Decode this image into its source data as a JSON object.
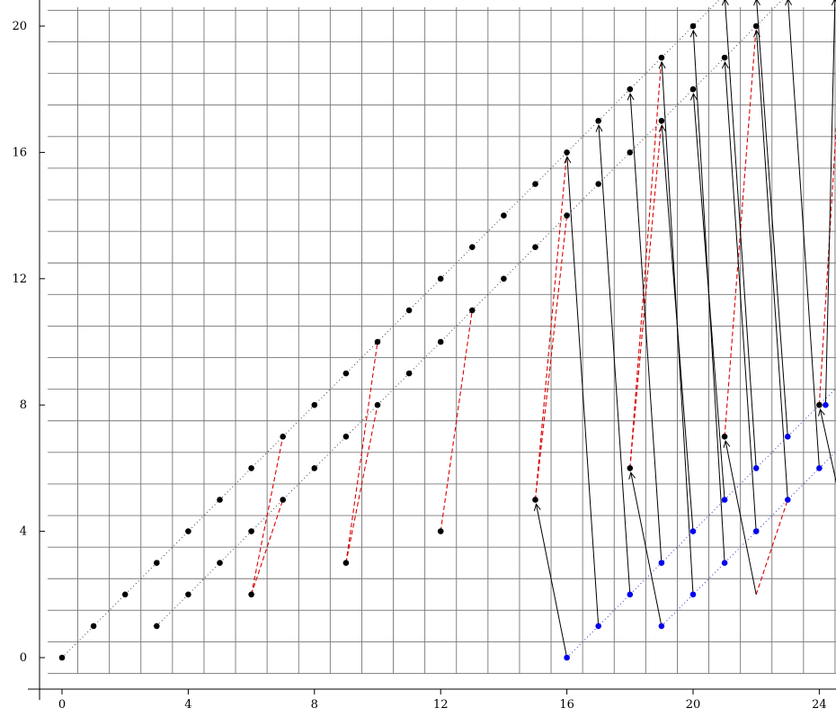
{
  "chart_data": {
    "type": "scatter",
    "title": "",
    "xlabel": "",
    "ylabel": "",
    "xlim": [
      -0.8,
      24.55
    ],
    "ylim": [
      -0.8,
      20.75
    ],
    "grid": true,
    "x_ticks": [
      0,
      4,
      8,
      12,
      16,
      20,
      24
    ],
    "y_ticks": [
      0,
      4,
      8,
      12,
      16,
      20
    ],
    "x_tick_labels": [
      "0",
      "4",
      "8",
      "12",
      "16",
      "20",
      "24"
    ],
    "y_tick_labels": [
      "0",
      "4",
      "8",
      "12",
      "16",
      "20"
    ],
    "colors": {
      "black_points": "#000000",
      "blue_points": "#0000ee",
      "red_dashed": "#dd0000",
      "black_dotted": "#444444",
      "blue_dotted": "#3333cc",
      "grid": "#777777"
    },
    "series": [
      {
        "color": "black",
        "marker": "dot",
        "points": [
          [
            0,
            0
          ],
          [
            1,
            1
          ],
          [
            2,
            2
          ],
          [
            3,
            3
          ],
          [
            4,
            4
          ],
          [
            5,
            5
          ],
          [
            6,
            6
          ],
          [
            7,
            7
          ],
          [
            8,
            8
          ],
          [
            9,
            9
          ],
          [
            10,
            10
          ],
          [
            11,
            11
          ],
          [
            12,
            12
          ],
          [
            13,
            13
          ],
          [
            14,
            14
          ],
          [
            15,
            15
          ],
          [
            16,
            16
          ],
          [
            17,
            17
          ],
          [
            18,
            18
          ],
          [
            19,
            19
          ],
          [
            20,
            20
          ],
          [
            3,
            1
          ],
          [
            4,
            2
          ],
          [
            5,
            3
          ],
          [
            6,
            4
          ],
          [
            7,
            5
          ],
          [
            8,
            6
          ],
          [
            9,
            7
          ],
          [
            10,
            8
          ],
          [
            11,
            9
          ],
          [
            12,
            10
          ],
          [
            13,
            11
          ],
          [
            14,
            12
          ],
          [
            15,
            13
          ],
          [
            16,
            14
          ],
          [
            17,
            15
          ],
          [
            18,
            16
          ],
          [
            19,
            17
          ],
          [
            20,
            18
          ],
          [
            21,
            19
          ],
          [
            22,
            20
          ],
          [
            6,
            2
          ],
          [
            9,
            3
          ],
          [
            12,
            4
          ],
          [
            15,
            5
          ],
          [
            18,
            6
          ],
          [
            21,
            7
          ],
          [
            24,
            8
          ]
        ]
      },
      {
        "color": "blue",
        "marker": "dot",
        "points": [
          [
            16,
            0
          ],
          [
            17,
            1
          ],
          [
            18,
            2
          ],
          [
            19,
            3
          ],
          [
            20,
            4
          ],
          [
            21,
            5
          ],
          [
            22,
            6
          ],
          [
            23,
            7
          ],
          [
            24.2,
            8
          ],
          [
            19,
            1
          ],
          [
            20,
            2
          ],
          [
            21,
            3
          ],
          [
            22,
            4
          ],
          [
            23,
            5
          ],
          [
            24,
            6
          ]
        ]
      }
    ],
    "dotted_lines": [
      {
        "color": "black",
        "from": [
          0,
          0
        ],
        "to": [
          21.3,
          21.3
        ]
      },
      {
        "color": "black",
        "from": [
          3,
          1
        ],
        "to": [
          23.3,
          21.3
        ]
      },
      {
        "color": "blue",
        "from": [
          16,
          0
        ],
        "to": [
          24.55,
          8.55
        ]
      },
      {
        "color": "blue",
        "from": [
          19,
          1
        ],
        "to": [
          24.55,
          6.55
        ]
      }
    ],
    "red_dashed": [
      [
        [
          6,
          2
        ],
        [
          7,
          7
        ]
      ],
      [
        [
          6,
          2
        ],
        [
          7,
          5
        ]
      ],
      [
        [
          9,
          3
        ],
        [
          10,
          10
        ]
      ],
      [
        [
          9,
          3
        ],
        [
          10,
          8
        ]
      ],
      [
        [
          12,
          4
        ],
        [
          13,
          11
        ]
      ],
      [
        [
          15,
          5
        ],
        [
          16,
          16
        ]
      ],
      [
        [
          15,
          5
        ],
        [
          16,
          14
        ]
      ],
      [
        [
          18,
          6
        ],
        [
          19,
          19
        ]
      ],
      [
        [
          18,
          6
        ],
        [
          19,
          17
        ]
      ],
      [
        [
          21,
          7
        ],
        [
          22,
          20
        ]
      ],
      [
        [
          22,
          2
        ],
        [
          23,
          5
        ]
      ],
      [
        [
          24,
          8
        ],
        [
          24.55,
          17
        ]
      ]
    ],
    "arrows": [
      {
        "from": [
          16,
          0
        ],
        "to": [
          15,
          5
        ]
      },
      {
        "from": [
          17,
          1
        ],
        "to": [
          16,
          16
        ]
      },
      {
        "from": [
          18,
          2
        ],
        "to": [
          17,
          17
        ]
      },
      {
        "from": [
          19,
          1
        ],
        "to": [
          18,
          6
        ]
      },
      {
        "from": [
          19,
          3
        ],
        "to": [
          18,
          18
        ]
      },
      {
        "from": [
          20,
          2
        ],
        "to": [
          19,
          19
        ]
      },
      {
        "from": [
          20,
          4
        ],
        "to": [
          19,
          17
        ]
      },
      {
        "from": [
          21,
          3
        ],
        "to": [
          20,
          20
        ]
      },
      {
        "from": [
          21,
          5
        ],
        "to": [
          20,
          18
        ]
      },
      {
        "from": [
          22,
          2
        ],
        "to": [
          21,
          7
        ]
      },
      {
        "from": [
          22,
          4
        ],
        "to": [
          21,
          19
        ]
      },
      {
        "from": [
          22,
          6
        ],
        "to": [
          21,
          21
        ]
      },
      {
        "from": [
          23,
          5
        ],
        "to": [
          22,
          20
        ]
      },
      {
        "from": [
          23,
          7
        ],
        "to": [
          22,
          21
        ]
      },
      {
        "from": [
          24,
          6
        ],
        "to": [
          23,
          21
        ]
      },
      {
        "from": [
          24.2,
          8
        ],
        "to": [
          24.5,
          21
        ]
      },
      {
        "from": [
          24.55,
          5.5
        ],
        "to": [
          24,
          8
        ]
      }
    ]
  }
}
